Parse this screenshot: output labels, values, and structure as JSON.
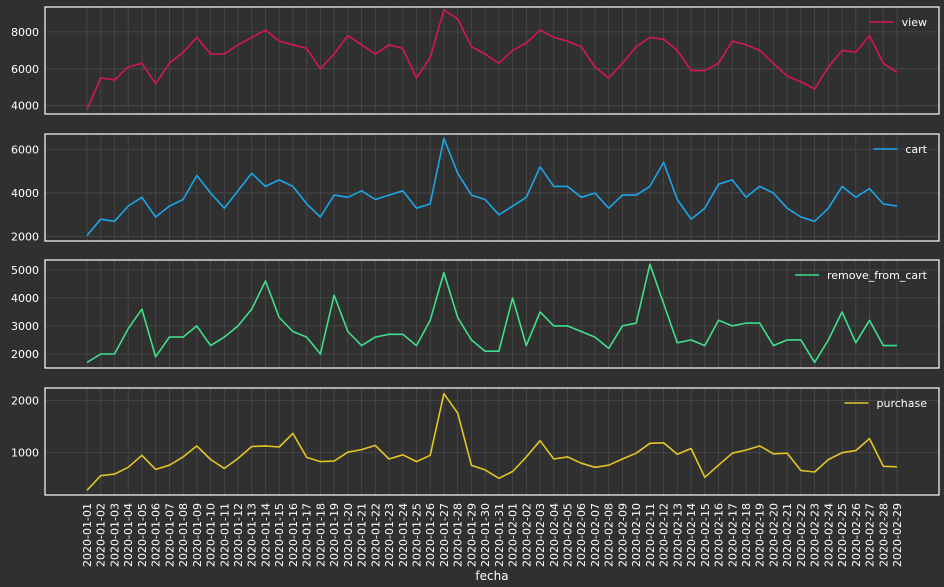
{
  "colors": {
    "background": "#303030",
    "grid": "#4a4a4a",
    "frame": "#ffffff",
    "text": "#ffffff"
  },
  "chart_data": {
    "type": "line",
    "layout": "4 stacked subplots sharing x axis",
    "xlabel": "fecha",
    "grid": true,
    "legend_placement": "top-right",
    "x": [
      "2020-01-01",
      "2020-01-02",
      "2020-01-03",
      "2020-01-04",
      "2020-01-05",
      "2020-01-06",
      "2020-01-07",
      "2020-01-08",
      "2020-01-09",
      "2020-01-10",
      "2020-01-11",
      "2020-01-12",
      "2020-01-13",
      "2020-01-14",
      "2020-01-15",
      "2020-01-16",
      "2020-01-17",
      "2020-01-18",
      "2020-01-19",
      "2020-01-20",
      "2020-01-21",
      "2020-01-22",
      "2020-01-23",
      "2020-01-24",
      "2020-01-25",
      "2020-01-26",
      "2020-01-27",
      "2020-01-28",
      "2020-01-29",
      "2020-01-30",
      "2020-01-31",
      "2020-02-01",
      "2020-02-02",
      "2020-02-03",
      "2020-02-04",
      "2020-02-05",
      "2020-02-06",
      "2020-02-07",
      "2020-02-08",
      "2020-02-09",
      "2020-02-10",
      "2020-02-11",
      "2020-02-12",
      "2020-02-13",
      "2020-02-14",
      "2020-02-15",
      "2020-02-16",
      "2020-02-17",
      "2020-02-18",
      "2020-02-19",
      "2020-02-20",
      "2020-02-21",
      "2020-02-22",
      "2020-02-23",
      "2020-02-24",
      "2020-02-25",
      "2020-02-26",
      "2020-02-27",
      "2020-02-28",
      "2020-02-29"
    ],
    "series": [
      {
        "name": "view",
        "color": "#d6174f",
        "ylim": [
          3550,
          9350
        ],
        "yticks": [
          4000,
          6000,
          8000
        ],
        "values": [
          3800,
          5500,
          5400,
          6100,
          6300,
          5200,
          6300,
          6900,
          7700,
          6800,
          6800,
          7300,
          7700,
          8100,
          7500,
          7300,
          7100,
          6000,
          6800,
          7800,
          7300,
          6800,
          7300,
          7100,
          5500,
          6600,
          9200,
          8700,
          7200,
          6800,
          6300,
          7000,
          7400,
          8100,
          7700,
          7500,
          7200,
          6100,
          5500,
          6300,
          7200,
          7700,
          7600,
          7000,
          5900,
          5900,
          6300,
          7500,
          7300,
          7000,
          6300,
          5600,
          5300,
          4900,
          6100,
          7000,
          6900,
          7800,
          6300,
          5800
        ]
      },
      {
        "name": "cart",
        "color": "#1ba6e8",
        "ylim": [
          1800,
          6700
        ],
        "yticks": [
          2000,
          4000,
          6000
        ],
        "values": [
          2050,
          2800,
          2700,
          3400,
          3800,
          2900,
          3400,
          3700,
          4800,
          4000,
          3300,
          4100,
          4900,
          4300,
          4600,
          4300,
          3500,
          2900,
          3900,
          3800,
          4100,
          3700,
          3900,
          4100,
          3300,
          3500,
          6500,
          4900,
          3900,
          3700,
          3000,
          3400,
          3800,
          5200,
          4300,
          4300,
          3800,
          4000,
          3300,
          3900,
          3900,
          4300,
          5400,
          3700,
          2800,
          3300,
          4400,
          4600,
          3800,
          4300,
          4000,
          3300,
          2900,
          2700,
          3300,
          4300,
          3800,
          4200,
          3500,
          3400
        ]
      },
      {
        "name": "remove_from_cart",
        "color": "#3ee08a",
        "ylim": [
          1500,
          5350
        ],
        "yticks": [
          2000,
          3000,
          4000,
          5000
        ],
        "values": [
          1700,
          2000,
          2000,
          2900,
          3600,
          1900,
          2600,
          2600,
          3000,
          2300,
          2600,
          3000,
          3600,
          4600,
          3300,
          2800,
          2600,
          2000,
          4100,
          2800,
          2300,
          2600,
          2700,
          2700,
          2300,
          3200,
          4900,
          3300,
          2500,
          2100,
          2100,
          4000,
          2300,
          3500,
          3000,
          3000,
          2800,
          2600,
          2200,
          3000,
          3100,
          5200,
          3800,
          2400,
          2500,
          2300,
          3200,
          3000,
          3100,
          3100,
          2300,
          2500,
          2500,
          1700,
          2500,
          3500,
          2400,
          3200,
          2300,
          2300
        ]
      },
      {
        "name": "purchase",
        "color": "#e3c622",
        "ylim": [
          190,
          2240
        ],
        "yticks": [
          1000,
          2000
        ],
        "values": [
          280,
          560,
          590,
          720,
          950,
          680,
          760,
          920,
          1130,
          870,
          700,
          890,
          1120,
          1130,
          1110,
          1370,
          910,
          830,
          840,
          1010,
          1060,
          1140,
          880,
          960,
          830,
          950,
          2130,
          1760,
          760,
          670,
          510,
          640,
          920,
          1230,
          880,
          920,
          800,
          720,
          760,
          880,
          990,
          1180,
          1190,
          970,
          1080,
          530,
          760,
          990,
          1050,
          1130,
          980,
          990,
          660,
          630,
          870,
          1000,
          1040,
          1270,
          740,
          730
        ]
      }
    ]
  }
}
